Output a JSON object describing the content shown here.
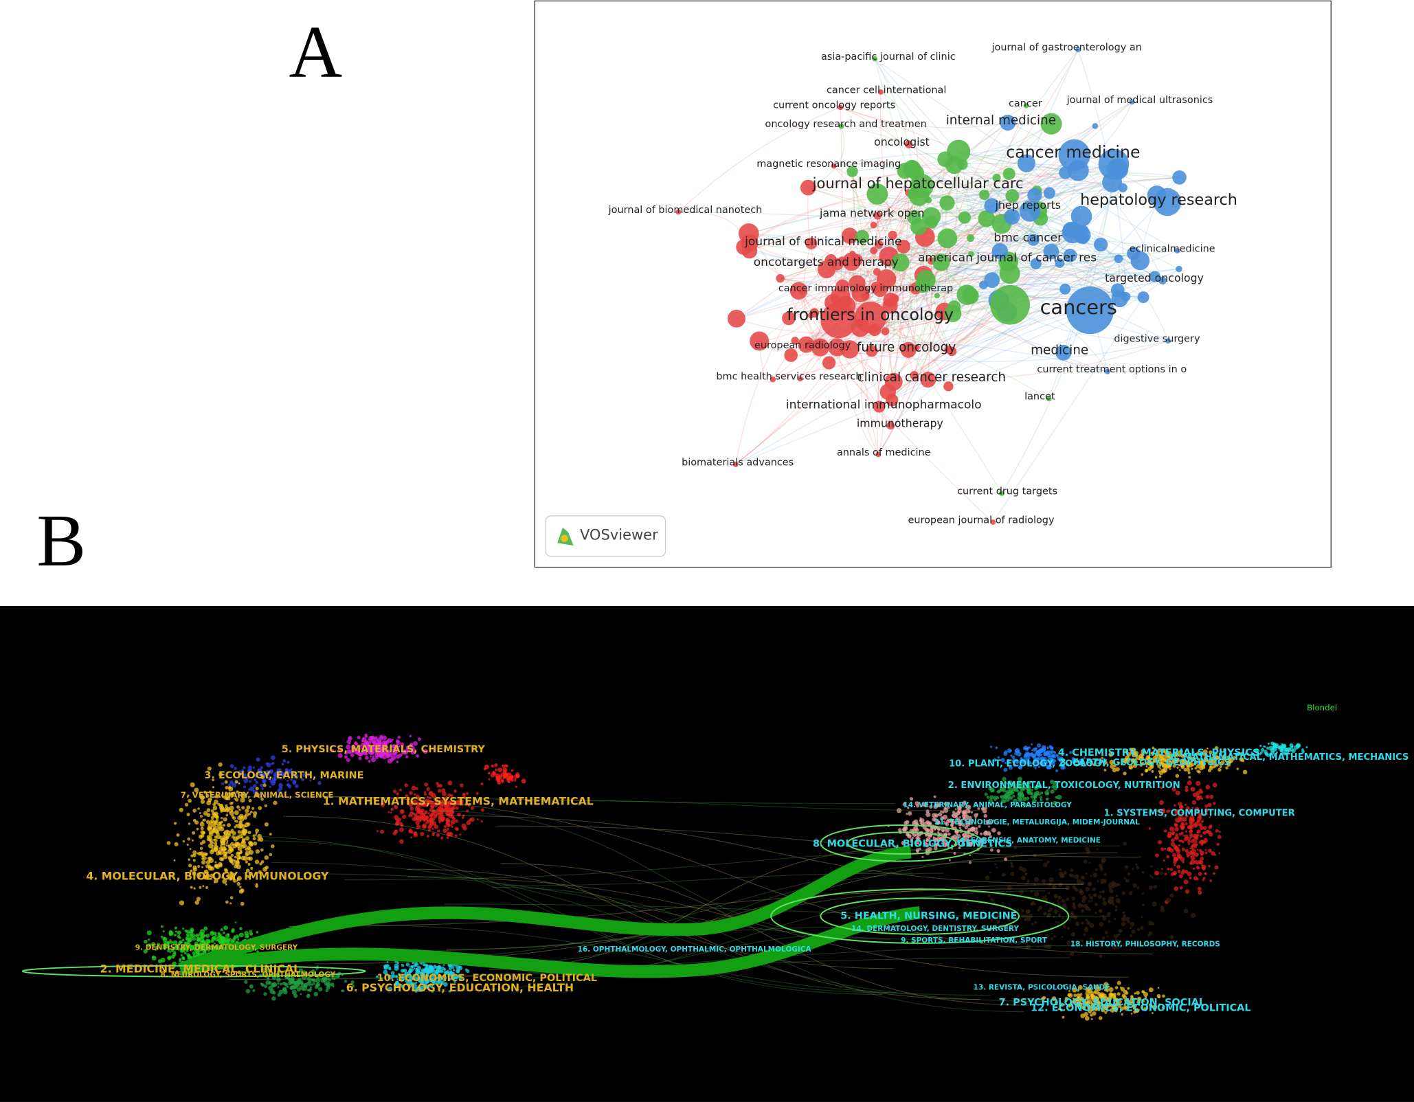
{
  "panel_a": {
    "label": "A",
    "logo": "VOSviewer",
    "nodes": [
      "asia-pacific journal of clinic",
      "journal of gastroenterology an",
      "cancer cell international",
      "journal of medical ultrasonics",
      "current oncology reports",
      "cancer",
      "oncology research and treatmen",
      "internal medicine",
      "oncologist",
      "cancer medicine",
      "magnetic resonance imaging",
      "journal of hepatocellular carc",
      "hepatology research",
      "journal of biomedical nanotech",
      "jhep reports",
      "jama network open",
      "bmc cancer",
      "journal of clinical medicine",
      "eclinicalmedicine",
      "american journal of cancer res",
      "oncotargets and therapy",
      "targeted oncology",
      "cancer immunology immunotherap",
      "frontiers in oncology",
      "cancers",
      "european radiology",
      "medicine",
      "future oncology",
      "digestive surgery",
      "bmc health services research",
      "clinical cancer research",
      "current treatment options in o",
      "lancet",
      "international immunopharmacolo",
      "immunotherapy",
      "annals of medicine",
      "biomaterials advances",
      "current drug targets",
      "european journal of radiology"
    ]
  },
  "panel_b": {
    "label": "B",
    "method": "Blondel",
    "left_clusters": [
      "5. PHYSICS, MATERIALS, CHEMISTRY",
      "3. ECOLOGY, EARTH, MARINE",
      "7. VETERINARY, ANIMAL, SCIENCE",
      "1. MATHEMATICS, SYSTEMS, MATHEMATICAL",
      "4. MOLECULAR, BIOLOGY, IMMUNOLOGY",
      "9. DENTISTRY, DERMATOLOGY, SURGERY",
      "2. MEDICINE, MEDICAL, CLINICAL",
      "8. NEUROLOGY, SPORTS, OPHTHALMOLOGY",
      "10. ECONOMICS, ECONOMIC, POLITICAL",
      "6. PSYCHOLOGY, EDUCATION, HEALTH"
    ],
    "right_clusters": [
      "4. CHEMISTRY, MATERIALS, PHYSICS",
      "6. MATHEMATICAL, MATHEMATICS, MECHANICS",
      "3. EARTH, GEOLOGY, GEOPHYSICS",
      "10. PLANT, ECOLOGY, ZOOLOGY",
      "2. ENVIRONMENTAL, TOXICOLOGY, NUTRITION",
      "14. VETERINARY, ANIMAL, PARASITOLOGY",
      "1. SYSTEMS, COMPUTING, COMPUTER",
      "21. TECHNOLOGIE, METALURGIJA, MIDEM-JOURNAL",
      "8. MOLECULAR, BIOLOGY, GENETICS",
      "16. FORENSIC, ANATOMY, MEDICINE",
      "5. HEALTH, NURSING, MEDICINE",
      "14. DERMATOLOGY, DENTISTRY, SURGERY",
      "9. SPORTS, REHABILITATION, SPORT",
      "16. OPHTHALMOLOGY, OPHTHALMIC, OPHTHALMOLOGICA",
      "18. HISTORY, PHILOSOPHY, RECORDS",
      "13. REVISTA, PSICOLOGIA, SAUDE",
      "7. PSYCHOLOGY, EDUCATION, SOCIAL",
      "12. ECONOMICS, ECONOMIC, POLITICAL"
    ]
  }
}
